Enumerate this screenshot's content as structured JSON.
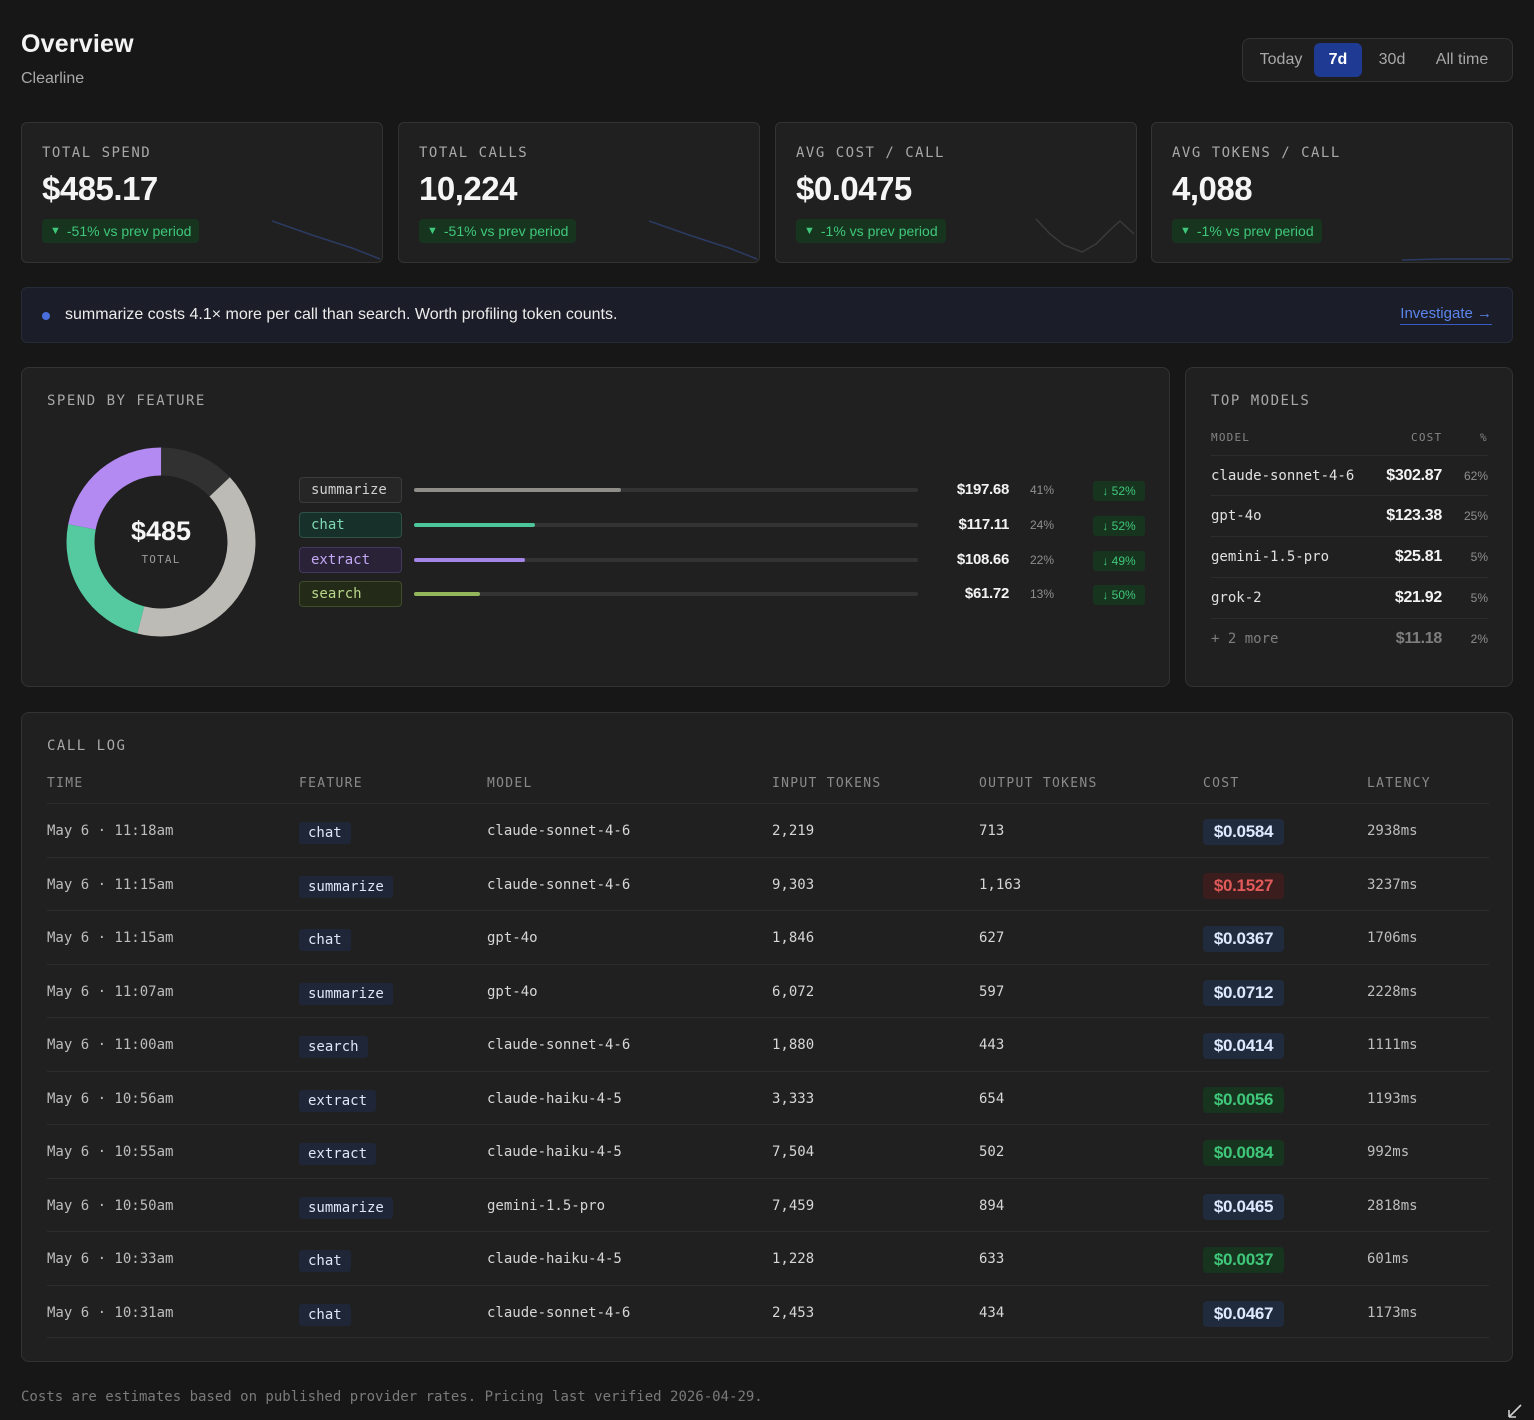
{
  "header": {
    "title": "Overview",
    "subtitle": "Clearline",
    "ranges": [
      "Today",
      "7d",
      "30d",
      "All time"
    ],
    "active_range": "7d"
  },
  "kpis": [
    {
      "label": "TOTAL SPEND",
      "value": "$485.17",
      "delta": "-51% vs prev period"
    },
    {
      "label": "TOTAL CALLS",
      "value": "10,224",
      "delta": "-51% vs prev period"
    },
    {
      "label": "AVG COST / CALL",
      "value": "$0.0475",
      "delta": "-1% vs prev period"
    },
    {
      "label": "AVG TOKENS / CALL",
      "value": "4,088",
      "delta": "-1% vs prev period"
    }
  ],
  "insight": {
    "text": "summarize costs 4.1× more per call than search. Worth profiling token counts.",
    "action": "Investigate →"
  },
  "spend_by_feature": {
    "title": "SPEND BY FEATURE",
    "total_value": "$485",
    "total_label": "TOTAL",
    "features": [
      {
        "name": "summarize",
        "amount": "$197.68",
        "pct": "41%",
        "change": "↓ 52%",
        "share": 0.41,
        "color": "#bdbbb5",
        "tag_bg": "#262626",
        "tag_border": "#3c3c3c",
        "tag_text": "#cfcfcf"
      },
      {
        "name": "chat",
        "amount": "$117.11",
        "pct": "24%",
        "change": "↓ 52%",
        "share": 0.24,
        "color": "#4dc59b",
        "tag_bg": "#17302a",
        "tag_border": "#2f5247",
        "tag_text": "#7fd9b4"
      },
      {
        "name": "extract",
        "amount": "$108.66",
        "pct": "22%",
        "change": "↓ 49%",
        "share": 0.22,
        "color": "#a584e8",
        "tag_bg": "#2a2338",
        "tag_border": "#44395d",
        "tag_text": "#c3a8f5"
      },
      {
        "name": "search",
        "amount": "$61.72",
        "pct": "13%",
        "change": "↓ 50%",
        "share": 0.13,
        "color": "#93b55b",
        "tag_bg": "#232b18",
        "tag_border": "#3f4d2a",
        "tag_text": "#b9d68a"
      }
    ]
  },
  "top_models": {
    "title": "TOP MODELS",
    "col_model": "MODEL",
    "col_cost": "COST",
    "col_pct": "%",
    "rows": [
      {
        "model": "claude-sonnet-4-6",
        "cost": "$302.87",
        "pct": "62%"
      },
      {
        "model": "gpt-4o",
        "cost": "$123.38",
        "pct": "25%"
      },
      {
        "model": "gemini-1.5-pro",
        "cost": "$25.81",
        "pct": "5%"
      },
      {
        "model": "grok-2",
        "cost": "$21.92",
        "pct": "5%"
      },
      {
        "model": "+ 2 more",
        "cost": "$11.18",
        "pct": "2%"
      }
    ]
  },
  "call_log": {
    "title": "CALL LOG",
    "columns": [
      "TIME",
      "FEATURE",
      "MODEL",
      "INPUT TOKENS",
      "OUTPUT TOKENS",
      "COST",
      "LATENCY"
    ],
    "rows": [
      {
        "time": "May 6 · 11:18am",
        "feature": "chat",
        "model": "claude-sonnet-4-6",
        "input": "2,219",
        "output": "713",
        "cost": "$0.0584",
        "cost_level": "normal",
        "latency": "2938ms"
      },
      {
        "time": "May 6 · 11:15am",
        "feature": "summarize",
        "model": "claude-sonnet-4-6",
        "input": "9,303",
        "output": "1,163",
        "cost": "$0.1527",
        "cost_level": "high",
        "latency": "3237ms"
      },
      {
        "time": "May 6 · 11:15am",
        "feature": "chat",
        "model": "gpt-4o",
        "input": "1,846",
        "output": "627",
        "cost": "$0.0367",
        "cost_level": "normal",
        "latency": "1706ms"
      },
      {
        "time": "May 6 · 11:07am",
        "feature": "summarize",
        "model": "gpt-4o",
        "input": "6,072",
        "output": "597",
        "cost": "$0.0712",
        "cost_level": "normal",
        "latency": "2228ms"
      },
      {
        "time": "May 6 · 11:00am",
        "feature": "search",
        "model": "claude-sonnet-4-6",
        "input": "1,880",
        "output": "443",
        "cost": "$0.0414",
        "cost_level": "normal",
        "latency": "1111ms"
      },
      {
        "time": "May 6 · 10:56am",
        "feature": "extract",
        "model": "claude-haiku-4-5",
        "input": "3,333",
        "output": "654",
        "cost": "$0.0056",
        "cost_level": "low",
        "latency": "1193ms"
      },
      {
        "time": "May 6 · 10:55am",
        "feature": "extract",
        "model": "claude-haiku-4-5",
        "input": "7,504",
        "output": "502",
        "cost": "$0.0084",
        "cost_level": "low",
        "latency": "992ms"
      },
      {
        "time": "May 6 · 10:50am",
        "feature": "summarize",
        "model": "gemini-1.5-pro",
        "input": "7,459",
        "output": "894",
        "cost": "$0.0465",
        "cost_level": "normal",
        "latency": "2818ms"
      },
      {
        "time": "May 6 · 10:33am",
        "feature": "chat",
        "model": "claude-haiku-4-5",
        "input": "1,228",
        "output": "633",
        "cost": "$0.0037",
        "cost_level": "low",
        "latency": "601ms"
      },
      {
        "time": "May 6 · 10:31am",
        "feature": "chat",
        "model": "claude-sonnet-4-6",
        "input": "2,453",
        "output": "434",
        "cost": "$0.0467",
        "cost_level": "normal",
        "latency": "1173ms"
      }
    ]
  },
  "footnote": "Costs are estimates based on published provider rates. Pricing last verified 2026-04-29.",
  "icons": {
    "delta": "triangle-down-icon",
    "insight": "dot-icon",
    "resize": "resize-corner-icon"
  }
}
